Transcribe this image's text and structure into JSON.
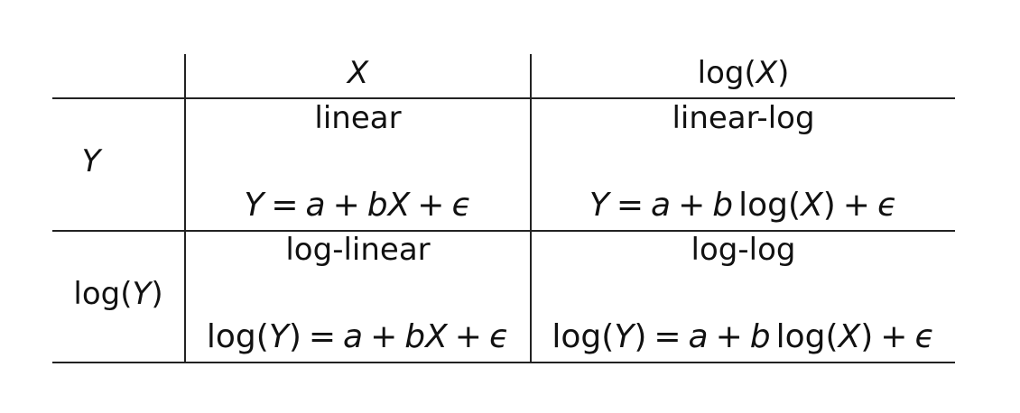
{
  "table": {
    "col_headers": [
      {
        "pre": "",
        "var": "X",
        "post": ""
      },
      {
        "pre": "log(",
        "var": "X",
        "post": ")"
      }
    ],
    "row_headers": [
      {
        "pre": "",
        "var": "Y",
        "post": ""
      },
      {
        "pre": "log(",
        "var": "Y",
        "post": ")"
      }
    ],
    "cells": [
      {
        "name": "linear",
        "eq": {
          "lhs_pre": "",
          "lhs_var": "Y",
          "lhs_post": "",
          "eq": "=",
          "a": "a",
          "plus1": "+",
          "b": "b",
          "term_pre": "",
          "term_var": "X",
          "term_post": "",
          "plus2": "+",
          "eps": "ϵ"
        }
      },
      {
        "name": "linear-log",
        "eq": {
          "lhs_pre": "",
          "lhs_var": "Y",
          "lhs_post": "",
          "eq": "=",
          "a": "a",
          "plus1": "+",
          "b": "b",
          "term_pre": "log(",
          "term_var": "X",
          "term_post": ")",
          "plus2": "+",
          "eps": "ϵ"
        }
      },
      {
        "name": "log-linear",
        "eq": {
          "lhs_pre": "log(",
          "lhs_var": "Y",
          "lhs_post": ")",
          "eq": "=",
          "a": "a",
          "plus1": "+",
          "b": "b",
          "term_pre": "",
          "term_var": "X",
          "term_post": "",
          "plus2": "+",
          "eps": "ϵ"
        }
      },
      {
        "name": "log-log",
        "eq": {
          "lhs_pre": "log(",
          "lhs_var": "Y",
          "lhs_post": ")",
          "eq": "=",
          "a": "a",
          "plus1": "+",
          "b": "b",
          "term_pre": "log(",
          "term_var": "X",
          "term_post": ")",
          "plus2": "+",
          "eps": "ϵ"
        }
      }
    ]
  }
}
